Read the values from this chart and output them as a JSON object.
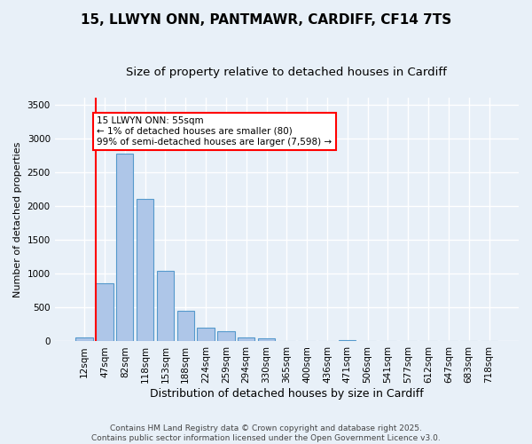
{
  "title": "15, LLWYN ONN, PANTMAWR, CARDIFF, CF14 7TS",
  "subtitle": "Size of property relative to detached houses in Cardiff",
  "xlabel": "Distribution of detached houses by size in Cardiff",
  "ylabel": "Number of detached properties",
  "categories": [
    "12sqm",
    "47sqm",
    "82sqm",
    "118sqm",
    "153sqm",
    "188sqm",
    "224sqm",
    "259sqm",
    "294sqm",
    "330sqm",
    "365sqm",
    "400sqm",
    "436sqm",
    "471sqm",
    "506sqm",
    "541sqm",
    "577sqm",
    "612sqm",
    "647sqm",
    "683sqm",
    "718sqm"
  ],
  "values": [
    55,
    855,
    2780,
    2110,
    1040,
    455,
    205,
    145,
    60,
    40,
    0,
    0,
    0,
    25,
    0,
    0,
    0,
    0,
    0,
    0,
    0
  ],
  "bar_color": "#aec6e8",
  "bar_edge_color": "#5599cc",
  "vline_color": "red",
  "annotation_text": "15 LLWYN ONN: 55sqm\n← 1% of detached houses are smaller (80)\n99% of semi-detached houses are larger (7,598) →",
  "annotation_box_color": "white",
  "annotation_box_edge_color": "red",
  "ylim": [
    0,
    3600
  ],
  "yticks": [
    0,
    500,
    1000,
    1500,
    2000,
    2500,
    3000,
    3500
  ],
  "background_color": "#e8f0f8",
  "grid_color": "white",
  "footer_line1": "Contains HM Land Registry data © Crown copyright and database right 2025.",
  "footer_line2": "Contains public sector information licensed under the Open Government Licence v3.0.",
  "title_fontsize": 11,
  "subtitle_fontsize": 9.5,
  "xlabel_fontsize": 9,
  "ylabel_fontsize": 8,
  "tick_fontsize": 7.5,
  "footer_fontsize": 6.5
}
